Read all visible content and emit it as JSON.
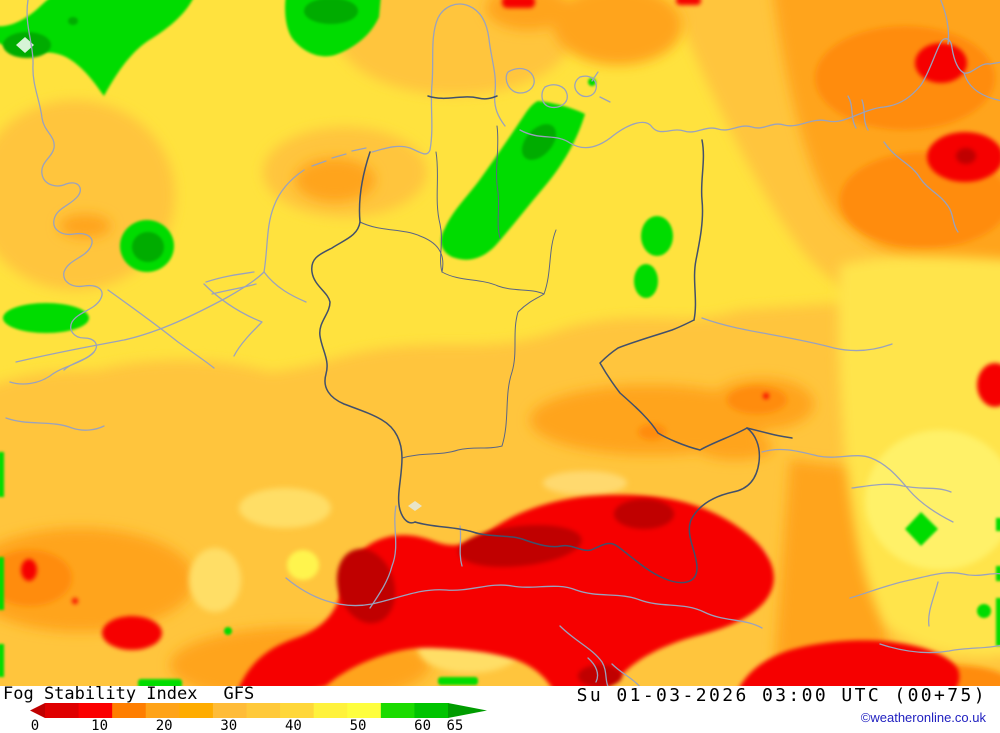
{
  "header": {
    "title": "Fog Stability Index",
    "model": "GFS",
    "datetime": "Su 01-03-2026 03:00 UTC (00+75)"
  },
  "legend": {
    "tick_values": [
      0,
      10,
      20,
      30,
      40,
      50,
      60,
      65
    ],
    "segment_colors": [
      "#DF0000",
      "#FB0000",
      "#FF7E00",
      "#FFA318",
      "#FFAC00",
      "#FFBC38",
      "#FFC93A",
      "#FFD73A",
      "#FFF23C",
      "#FEFE3E",
      "#1BDB00",
      "#00C400"
    ],
    "left_arrow_color": "#C00000",
    "right_arrow_color": "#009C00"
  },
  "footer": {
    "copyright": "©weatheronline.co.uk"
  },
  "map": {
    "kind": "filled-contour forecast map",
    "region_shown": "Central Europe (Germany and neighbouring countries)"
  }
}
